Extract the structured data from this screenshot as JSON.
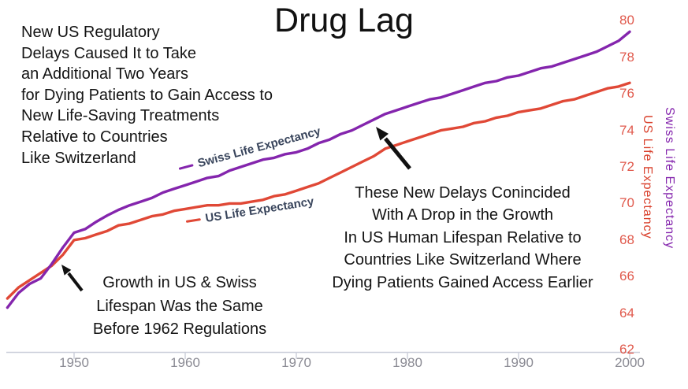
{
  "title": "Drug Lag",
  "annotations": {
    "left_block": "New US Regulatory\nDelays Caused It to Take\nan Additional Two Years\nfor Dying Patients to Gain Access to\nNew Life-Saving Treatments\nRelative to Countries\nLike Switzerland",
    "early_growth": "Growth in US & Swiss\nLifespan Was the Same\nBefore 1962 Regulations",
    "new_delays": "These New Delays Conincided\nWith A Drop in the Growth\nIn US Human Lifespan Relative to\nCountries Like Switzerland Where\nDying Patients Gained Access Earlier"
  },
  "line_labels": {
    "swiss": "Swiss Life Expectancy",
    "us": "US Life Expectancy"
  },
  "axes": {
    "right_label_us": "US Life Expectancy",
    "right_label_swiss": "Swiss Life Expectancy"
  },
  "colors": {
    "swiss_line": "#8425AD",
    "us_line": "#E04836",
    "y_tick_label": "#E0594C",
    "x_tick_label": "#8A8A93",
    "axis_line": "#CDD0DB",
    "line_label_text": "#39455C",
    "annotation_text": "#141414"
  },
  "chart_data": {
    "type": "line",
    "title": "Drug Lag",
    "xlabel": "",
    "ylabel_right_1": "US Life Expectancy",
    "ylabel_right_2": "Swiss Life Expectancy",
    "grid": false,
    "y_axis_side": "right",
    "xlim": [
      1943.5,
      2001
    ],
    "ylim": [
      61.8,
      80.6
    ],
    "x_ticks": [
      1950,
      1960,
      1970,
      1980,
      1990,
      2000
    ],
    "y_ticks": [
      62,
      64,
      66,
      68,
      70,
      72,
      74,
      76,
      78,
      80
    ],
    "x": [
      1944,
      1945,
      1946,
      1947,
      1948,
      1949,
      1950,
      1951,
      1952,
      1953,
      1954,
      1955,
      1956,
      1957,
      1958,
      1959,
      1960,
      1961,
      1962,
      1963,
      1964,
      1965,
      1966,
      1967,
      1968,
      1969,
      1970,
      1971,
      1972,
      1973,
      1974,
      1975,
      1976,
      1977,
      1978,
      1979,
      1980,
      1981,
      1982,
      1983,
      1984,
      1985,
      1986,
      1987,
      1988,
      1989,
      1990,
      1991,
      1992,
      1993,
      1994,
      1995,
      1996,
      1997,
      1998,
      1999,
      2000
    ],
    "series": [
      {
        "name": "Swiss Life Expectancy",
        "color": "#8425AD",
        "values": [
          64.3,
          65.1,
          65.6,
          65.9,
          66.7,
          67.6,
          68.4,
          68.6,
          69.0,
          69.35,
          69.65,
          69.9,
          70.1,
          70.3,
          70.6,
          70.8,
          71.0,
          71.2,
          71.4,
          71.5,
          71.8,
          72.0,
          72.2,
          72.4,
          72.5,
          72.7,
          72.8,
          73.0,
          73.3,
          73.5,
          73.8,
          74.0,
          74.3,
          74.6,
          74.9,
          75.1,
          75.3,
          75.5,
          75.7,
          75.8,
          76.0,
          76.2,
          76.4,
          76.6,
          76.7,
          76.9,
          77.0,
          77.2,
          77.4,
          77.5,
          77.7,
          77.9,
          78.1,
          78.3,
          78.6,
          78.9,
          79.4
        ]
      },
      {
        "name": "US Life Expectancy",
        "color": "#E04836",
        "values": [
          64.8,
          65.4,
          65.8,
          66.2,
          66.6,
          67.2,
          68.0,
          68.1,
          68.3,
          68.5,
          68.8,
          68.9,
          69.1,
          69.3,
          69.4,
          69.6,
          69.7,
          69.8,
          69.9,
          69.9,
          70.0,
          70.0,
          70.1,
          70.2,
          70.4,
          70.5,
          70.7,
          70.9,
          71.1,
          71.4,
          71.7,
          72.0,
          72.3,
          72.6,
          73.0,
          73.2,
          73.4,
          73.6,
          73.8,
          74.0,
          74.1,
          74.2,
          74.4,
          74.5,
          74.7,
          74.8,
          75.0,
          75.1,
          75.2,
          75.4,
          75.6,
          75.7,
          75.9,
          76.1,
          76.3,
          76.4,
          76.6
        ]
      }
    ],
    "annotations": [
      "Growth in US & Swiss Lifespan Was the Same Before 1962 Regulations",
      "These New Delays Conincided With A Drop in the Growth In US Human Lifespan Relative to Countries Like Switzerland Where Dying Patients Gained Access Earlier"
    ]
  }
}
